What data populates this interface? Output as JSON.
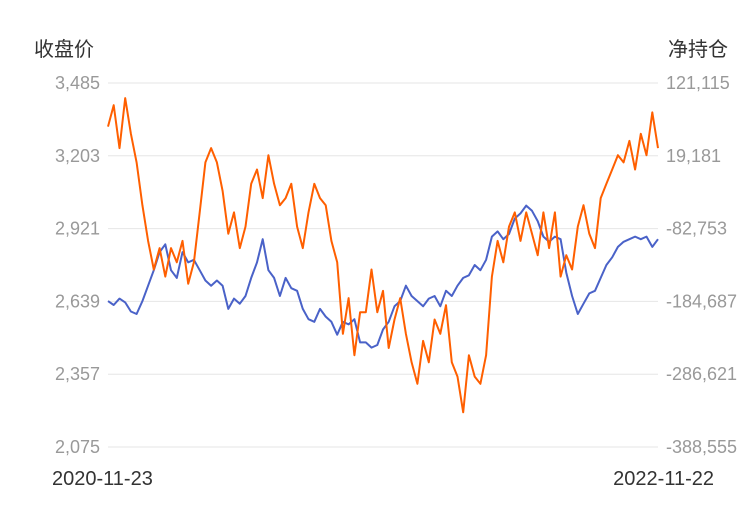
{
  "chart_data": {
    "type": "line",
    "x_start": "2020-11-23",
    "x_end": "2022-11-22",
    "left_axis": {
      "label": "收盘价",
      "ticks": [
        "3,485",
        "3,203",
        "2,921",
        "2,639",
        "2,357",
        "2,075"
      ],
      "ylim": [
        2075,
        3485
      ]
    },
    "right_axis": {
      "label": "净持仓",
      "ticks": [
        "121,115",
        "19,181",
        "-82,753",
        "-184,687",
        "-286,621",
        "-388,555"
      ],
      "ylim": [
        -388555,
        121115
      ]
    },
    "grid": true,
    "series": [
      {
        "axis": "left",
        "color": "#4a62c8",
        "values": [
          2640,
          2625,
          2650,
          2635,
          2600,
          2590,
          2640,
          2700,
          2760,
          2830,
          2860,
          2760,
          2730,
          2830,
          2790,
          2800,
          2760,
          2720,
          2700,
          2720,
          2700,
          2610,
          2650,
          2630,
          2660,
          2730,
          2790,
          2880,
          2760,
          2730,
          2660,
          2730,
          2690,
          2680,
          2610,
          2570,
          2560,
          2610,
          2580,
          2560,
          2510,
          2560,
          2550,
          2570,
          2480,
          2480,
          2460,
          2470,
          2530,
          2560,
          2620,
          2640,
          2700,
          2660,
          2640,
          2620,
          2650,
          2660,
          2620,
          2680,
          2660,
          2700,
          2730,
          2740,
          2780,
          2760,
          2800,
          2890,
          2910,
          2880,
          2900,
          2960,
          2980,
          3010,
          2990,
          2950,
          2890,
          2870,
          2890,
          2880,
          2750,
          2660,
          2590,
          2630,
          2670,
          2680,
          2730,
          2780,
          2810,
          2850,
          2870,
          2880,
          2890,
          2880,
          2890,
          2850,
          2880
        ]
      },
      {
        "axis": "right",
        "color": "#ff5f00",
        "values": [
          60000,
          90000,
          30000,
          100000,
          50000,
          10000,
          -50000,
          -100000,
          -140000,
          -110000,
          -150000,
          -110000,
          -130000,
          -100000,
          -160000,
          -130000,
          -60000,
          10000,
          30000,
          10000,
          -30000,
          -90000,
          -60000,
          -110000,
          -80000,
          -20000,
          0,
          -40000,
          20000,
          -20000,
          -50000,
          -40000,
          -20000,
          -80000,
          -110000,
          -60000,
          -20000,
          -40000,
          -50000,
          -100000,
          -130000,
          -230000,
          -180000,
          -260000,
          -200000,
          -200000,
          -140000,
          -200000,
          -170000,
          -250000,
          -210000,
          -180000,
          -230000,
          -270000,
          -300000,
          -240000,
          -270000,
          -210000,
          -230000,
          -190000,
          -270000,
          -290000,
          -340000,
          -260000,
          -290000,
          -300000,
          -260000,
          -150000,
          -100000,
          -130000,
          -80000,
          -60000,
          -100000,
          -60000,
          -90000,
          -120000,
          -60000,
          -110000,
          -60000,
          -150000,
          -120000,
          -140000,
          -80000,
          -50000,
          -90000,
          -110000,
          -40000,
          -20000,
          0,
          20000,
          10000,
          40000,
          0,
          50000,
          20000,
          80000,
          30000
        ]
      }
    ]
  }
}
